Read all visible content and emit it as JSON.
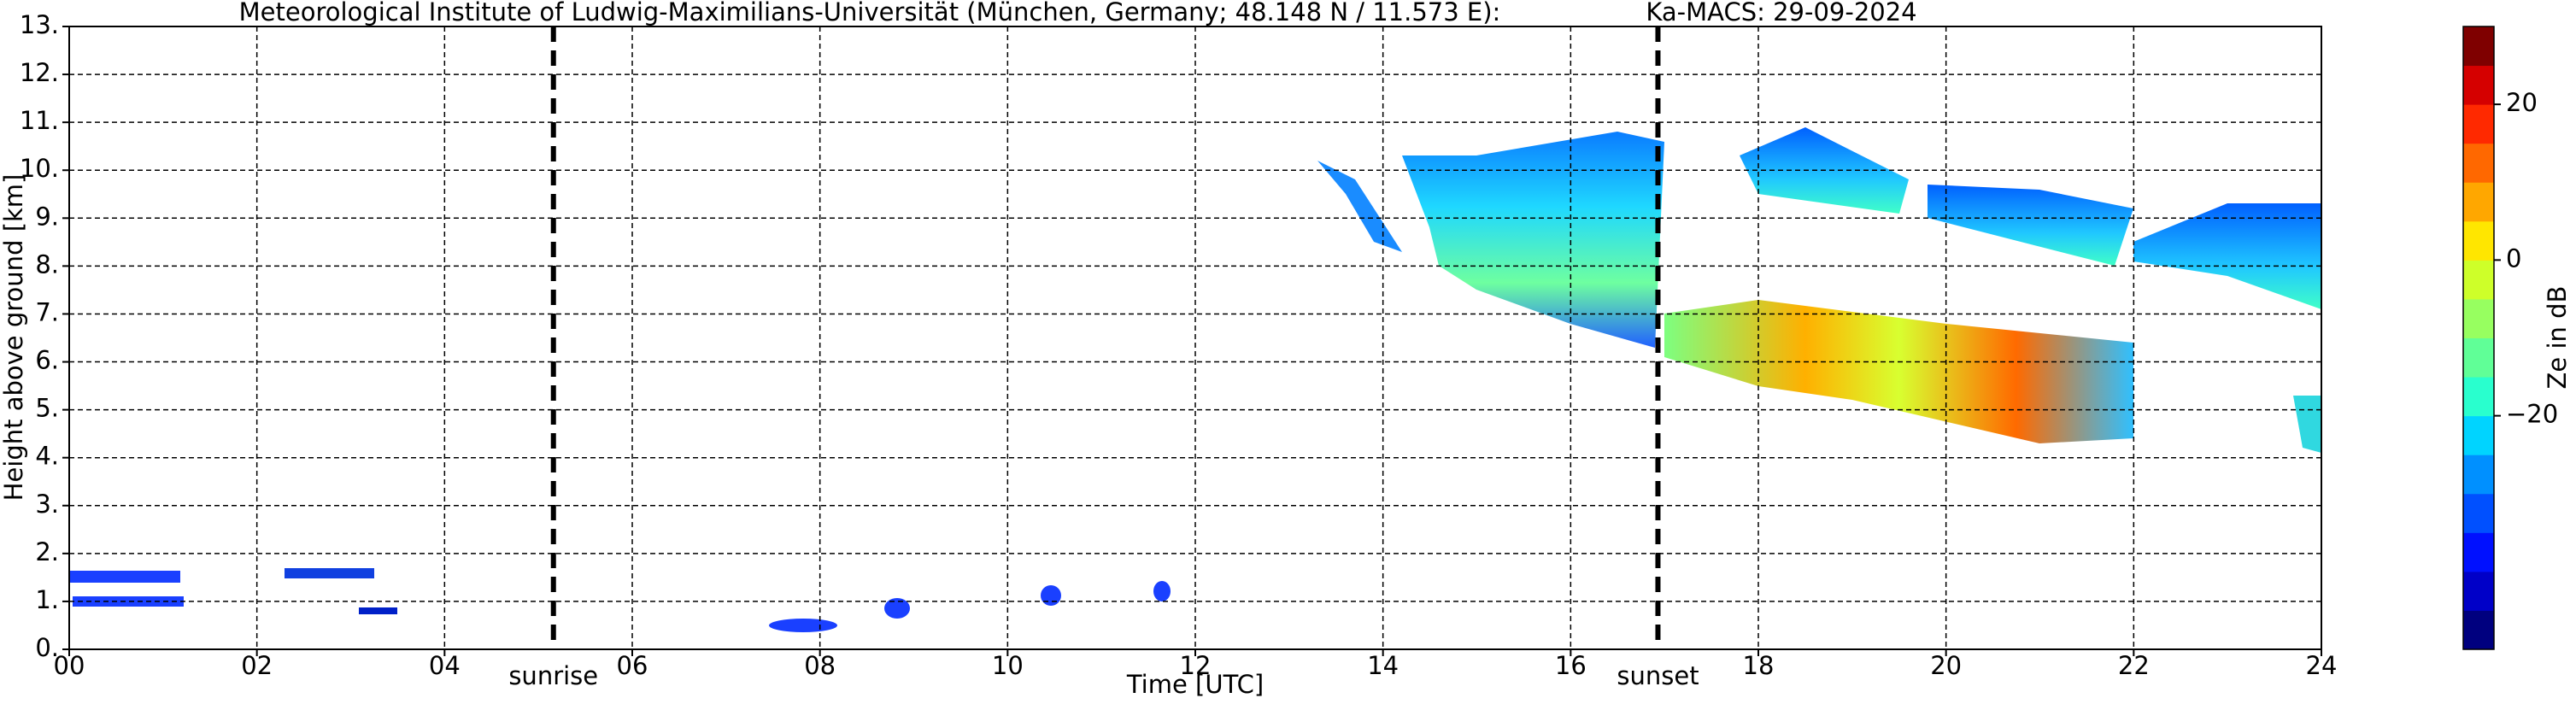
{
  "chart_data": {
    "type": "time-height",
    "title": "Meteorological Institute of Ludwig-Maximilians-Universität (München, Germany; 48.148 N / 11.573 E):",
    "subtitle": "Ka-MACS: 29-09-2024",
    "x_label": "Time [UTC]",
    "y_label": "Height above ground [km]",
    "xlim": [
      0,
      24
    ],
    "xticks": [
      {
        "value": 0,
        "label": "00"
      },
      {
        "value": 2,
        "label": "02"
      },
      {
        "value": 4,
        "label": "04"
      },
      {
        "value": 6,
        "label": "06"
      },
      {
        "value": 8,
        "label": "08"
      },
      {
        "value": 10,
        "label": "10"
      },
      {
        "value": 12,
        "label": "12"
      },
      {
        "value": 14,
        "label": "14"
      },
      {
        "value": 16,
        "label": "16"
      },
      {
        "value": 18,
        "label": "18"
      },
      {
        "value": 20,
        "label": "20"
      },
      {
        "value": 22,
        "label": "22"
      },
      {
        "value": 24,
        "label": "24"
      }
    ],
    "ylim": [
      0,
      13
    ],
    "yticks": [
      {
        "value": 0,
        "label": "0."
      },
      {
        "value": 1,
        "label": "1."
      },
      {
        "value": 2,
        "label": "2."
      },
      {
        "value": 3,
        "label": "3."
      },
      {
        "value": 4,
        "label": "4."
      },
      {
        "value": 5,
        "label": "5."
      },
      {
        "value": 6,
        "label": "6."
      },
      {
        "value": 7,
        "label": "7."
      },
      {
        "value": 8,
        "label": "8."
      },
      {
        "value": 9,
        "label": "9."
      },
      {
        "value": 10,
        "label": "10."
      },
      {
        "value": 11,
        "label": "11."
      },
      {
        "value": 12,
        "label": "12."
      },
      {
        "value": 13,
        "label": "13."
      }
    ],
    "grid": true,
    "annotations": [
      {
        "text": "sunrise",
        "x": 5.16
      },
      {
        "text": "sunset",
        "x": 16.93
      }
    ],
    "colorbar": {
      "label": "Ze in dB",
      "lim": [
        -50,
        30
      ],
      "ticks": [
        {
          "value": -20,
          "label": "−20"
        },
        0,
        20
      ],
      "colors": [
        "#00007f",
        "#0000c8",
        "#0010ff",
        "#0050ff",
        "#0090ff",
        "#00d4ff",
        "#29ffce",
        "#60ff97",
        "#97ff60",
        "#ceff29",
        "#ffe600",
        "#ffa700",
        "#ff6800",
        "#ff2900",
        "#d50000",
        "#7f0000"
      ]
    }
  }
}
